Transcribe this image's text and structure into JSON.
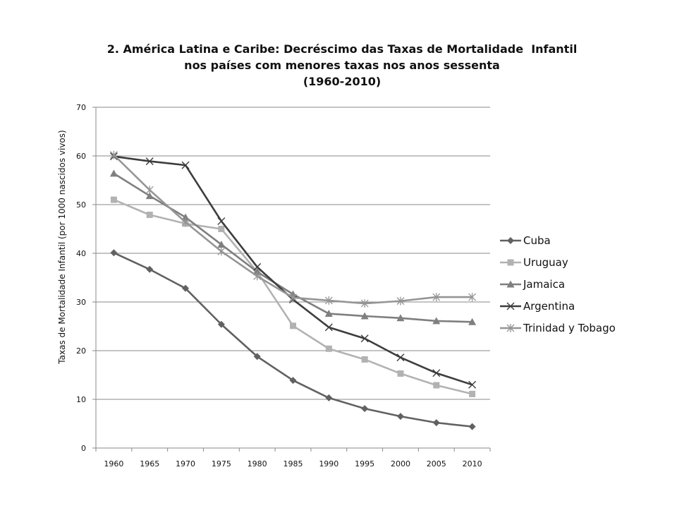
{
  "chart_data": {
    "type": "line",
    "title": [
      "2. América Latina e Caribe: Decréscimo das Taxas de Mortalidade  Infantil",
      "nos países com menores taxas nos anos sessenta",
      "(1960-2010)"
    ],
    "xlabel": "",
    "ylabel": "Taxas de Mortalidade Infantil (por 1000 nascidos vivos)",
    "categories": [
      "1960",
      "1965",
      "1970",
      "1975",
      "1980",
      "1985",
      "1990",
      "1995",
      "2000",
      "2005",
      "2010"
    ],
    "ylim": [
      0,
      70
    ],
    "yticks": [
      "0",
      "10",
      "20",
      "30",
      "40",
      "50",
      "60",
      "70"
    ],
    "grid": "horizontal",
    "legend_position": "right",
    "series": [
      {
        "name": "Cuba",
        "color": "#616161",
        "marker": "diamond",
        "values": [
          40.1,
          36.7,
          32.8,
          25.4,
          18.8,
          13.9,
          10.3,
          8.1,
          6.5,
          5.2,
          4.4
        ]
      },
      {
        "name": "Uruguay",
        "color": "#b2b2b2",
        "marker": "square",
        "values": [
          51.0,
          47.9,
          46.1,
          45.0,
          36.2,
          25.1,
          20.4,
          18.2,
          15.3,
          12.9,
          11.1
        ]
      },
      {
        "name": "Jamaica",
        "color": "#7f7f7f",
        "marker": "triangle",
        "values": [
          56.4,
          51.8,
          47.4,
          41.8,
          36.2,
          31.6,
          27.6,
          27.1,
          26.7,
          26.1,
          25.9
        ]
      },
      {
        "name": "Argentina",
        "color": "#3d3d3d",
        "marker": "x",
        "values": [
          59.9,
          58.9,
          58.1,
          46.6,
          37.2,
          30.5,
          24.8,
          22.5,
          18.6,
          15.4,
          13.0
        ]
      },
      {
        "name": "Trinidad y Tobago",
        "color": "#959595",
        "marker": "star",
        "values": [
          60.2,
          53.0,
          46.4,
          40.4,
          35.3,
          30.9,
          30.3,
          29.7,
          30.2,
          31.0,
          31.0
        ]
      }
    ]
  }
}
